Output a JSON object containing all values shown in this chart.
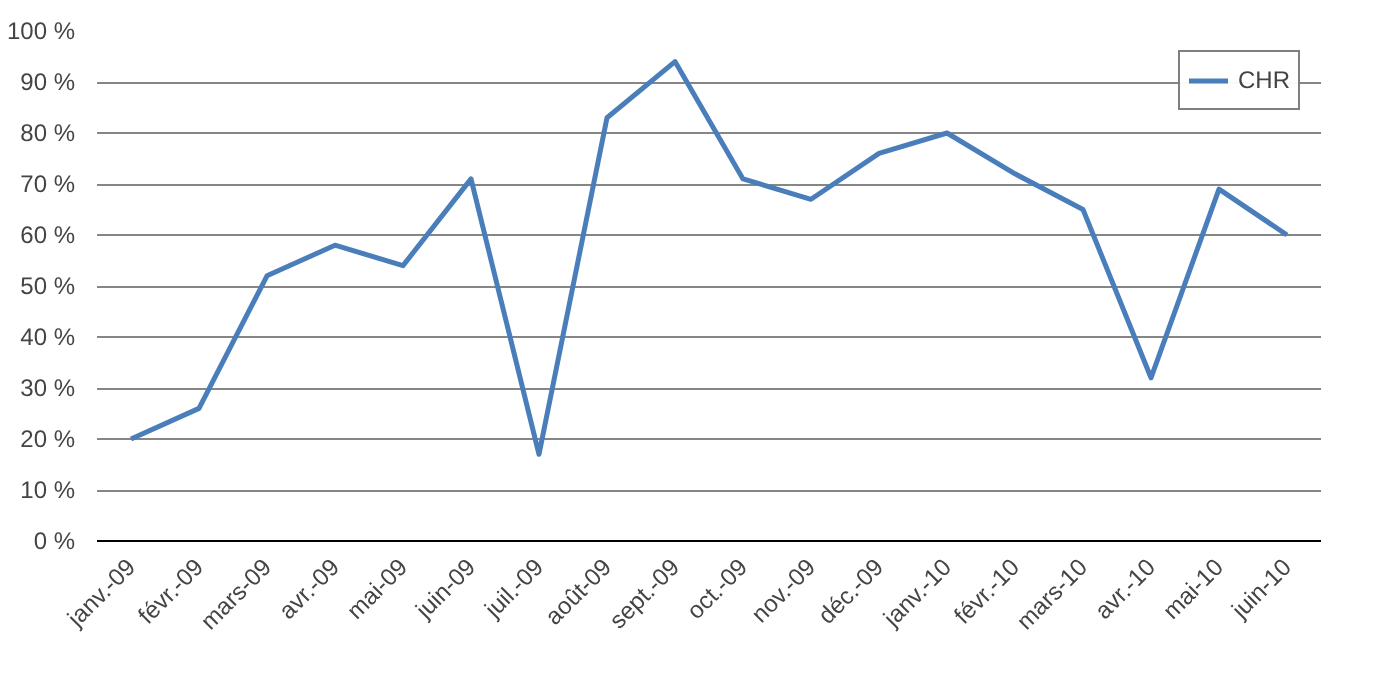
{
  "chart_data": {
    "type": "line",
    "categories": [
      "janv.-09",
      "févr.-09",
      "mars-09",
      "avr.-09",
      "mai-09",
      "juin-09",
      "juil.-09",
      "août-09",
      "sept.-09",
      "oct.-09",
      "nov.-09",
      "déc.-09",
      "janv.-10",
      "févr.-10",
      "mars-10",
      "avr.-10",
      "mai-10",
      "juin-10"
    ],
    "series": [
      {
        "name": "CHR",
        "color": "#4a7ebb",
        "values": [
          20,
          26,
          52,
          58,
          54,
          71,
          17,
          83,
          94,
          71,
          67,
          76,
          80,
          72,
          65,
          32,
          69,
          60
        ]
      }
    ],
    "ylim": [
      0,
      100
    ],
    "yticks": [
      {
        "value": 0,
        "label": "0 %"
      },
      {
        "value": 10,
        "label": "10 %"
      },
      {
        "value": 20,
        "label": "20 %"
      },
      {
        "value": 30,
        "label": "30 %"
      },
      {
        "value": 40,
        "label": "40 %"
      },
      {
        "value": 50,
        "label": "50 %"
      },
      {
        "value": 60,
        "label": "60 %"
      },
      {
        "value": 70,
        "label": "70 %"
      },
      {
        "value": 80,
        "label": "80 %"
      },
      {
        "value": 90,
        "label": "90 %"
      },
      {
        "value": 100,
        "label": "100 %"
      }
    ],
    "grid": "y",
    "legend": "top right",
    "marker": "none",
    "line_style": "solid"
  }
}
